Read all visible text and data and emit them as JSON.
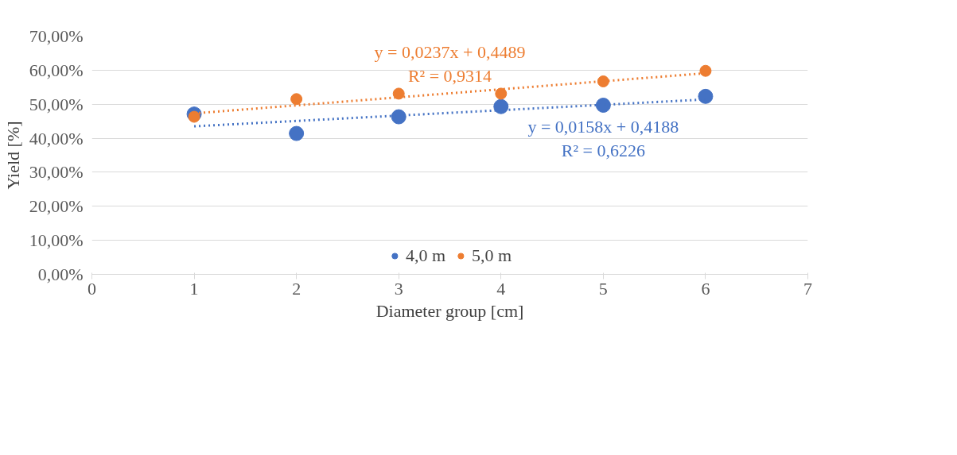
{
  "chart_data": {
    "type": "scatter",
    "xlabel": "Diameter group [cm]",
    "ylabel": "Yield [%]",
    "xlim": [
      0,
      7
    ],
    "xticks": [
      0,
      1,
      2,
      3,
      4,
      5,
      6,
      7
    ],
    "ylim": [
      0,
      70
    ],
    "yticks": [
      {
        "value": 0,
        "label": "0,00%"
      },
      {
        "value": 10,
        "label": "10,00%"
      },
      {
        "value": 20,
        "label": "20,00%"
      },
      {
        "value": 30,
        "label": "30,00%"
      },
      {
        "value": 40,
        "label": "40,00%"
      },
      {
        "value": 50,
        "label": "50,00%"
      },
      {
        "value": 60,
        "label": "60,00%"
      },
      {
        "value": 70,
        "label": "70,00%"
      }
    ],
    "grid": "y",
    "legend": "bottom",
    "marker": "circle",
    "series": [
      {
        "name": "4,0 m",
        "color": "#4472c4",
        "x": [
          1,
          2,
          3,
          4,
          5,
          6
        ],
        "values": [
          47.1,
          41.4,
          46.3,
          49.3,
          49.7,
          52.3
        ]
      },
      {
        "name": "5,0 m",
        "color": "#ed7d31",
        "x": [
          1,
          2,
          3,
          4,
          5,
          6
        ],
        "values": [
          46.3,
          51.5,
          53.1,
          53.1,
          56.7,
          59.8
        ]
      },
      {
        "type": "line",
        "color": "#4472c4",
        "x": [
          1,
          6
        ],
        "values": [
          43.5,
          51.4
        ],
        "line_style": "dotted",
        "marker": "none"
      },
      {
        "type": "line",
        "color": "#ed7d31",
        "x": [
          1,
          6
        ],
        "values": [
          47.3,
          59.1
        ],
        "line_style": "dotted",
        "marker": "none"
      }
    ],
    "annotations": [
      "y = 0,0158x + 0,4188",
      "R² = 0,6226",
      "y = 0,0237x + 0,4489",
      "R² = 0,9314"
    ]
  }
}
